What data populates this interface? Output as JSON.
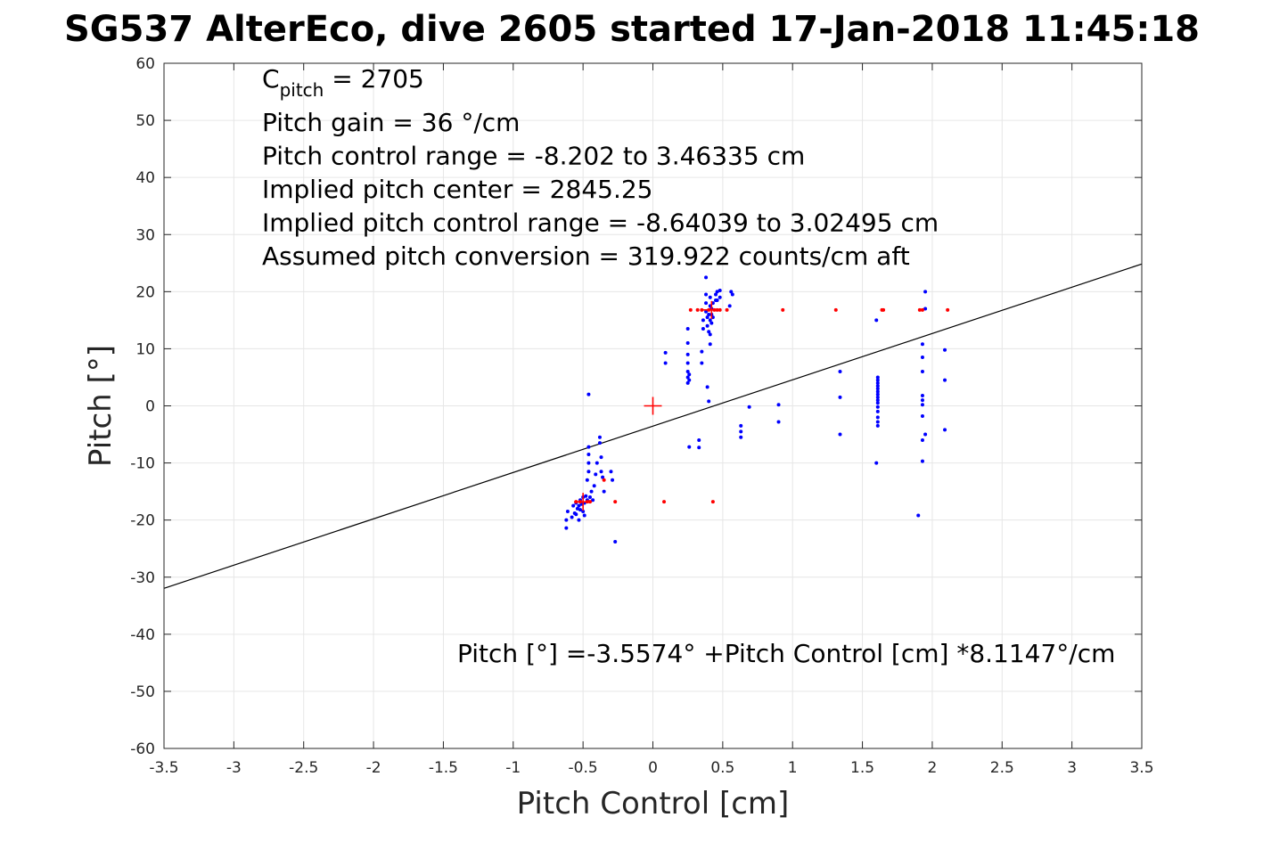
{
  "chart_data": {
    "type": "scatter",
    "title": "SG537 AlterEco, dive 2605 started 17-Jan-2018 11:45:18",
    "xlabel": "Pitch Control [cm]",
    "ylabel": "Pitch [°]",
    "xlim": [
      -3.5,
      3.5
    ],
    "ylim": [
      -60,
      60
    ],
    "xticks": [
      -3.5,
      -3,
      -2.5,
      -2,
      -1.5,
      -1,
      -0.5,
      0,
      0.5,
      1,
      1.5,
      2,
      2.5,
      3,
      3.5
    ],
    "xtick_labels": [
      "-3.5",
      "-3",
      "-2.5",
      "-2",
      "-1.5",
      "-1",
      "-0.5",
      "0",
      "0.5",
      "1",
      "1.5",
      "2",
      "2.5",
      "3",
      "3.5"
    ],
    "yticks": [
      -60,
      -50,
      -40,
      -30,
      -20,
      -10,
      0,
      10,
      20,
      30,
      40,
      50,
      60
    ],
    "ytick_labels": [
      "-60",
      "-50",
      "-40",
      "-30",
      "-20",
      "-10",
      "0",
      "10",
      "20",
      "30",
      "40",
      "50",
      "60"
    ],
    "grid": true,
    "colors": {
      "blue_points": "#0000ff",
      "red_points": "#ff0000",
      "fit_line": "#000000",
      "grid": "#e6e6e6"
    },
    "annotations": {
      "c_pitch_symbol": "C",
      "c_pitch_subscript": "pitch",
      "c_pitch_value": " = 2705",
      "lines": [
        "Pitch gain = 36 °/cm",
        "Pitch control range = -8.202 to 3.46335 cm",
        "Implied pitch center = 2845.25",
        "Implied pitch control range = -8.64039 to 3.02495 cm",
        "Assumed pitch conversion = 319.922 counts/cm aft"
      ],
      "fit_equation": "Pitch [°] =-3.5574° +Pitch Control [cm] *8.1147°/cm"
    },
    "fit_line": {
      "intercept": -3.5574,
      "slope": 8.1147
    },
    "center_marker": {
      "x": 0,
      "y": 0
    },
    "secondary_markers": [
      {
        "x": 0.42,
        "y": 16.8
      },
      {
        "x": -0.5,
        "y": -16.8
      }
    ],
    "series": [
      {
        "color": "blue",
        "points": [
          [
            -0.62,
            -21.4
          ],
          [
            -0.62,
            -20.0
          ],
          [
            -0.61,
            -18.5
          ],
          [
            -0.58,
            -19.5
          ],
          [
            -0.57,
            -17.5
          ],
          [
            -0.56,
            -18.8
          ],
          [
            -0.55,
            -17.0
          ],
          [
            -0.55,
            -19.0
          ],
          [
            -0.54,
            -18.0
          ],
          [
            -0.53,
            -17.5
          ],
          [
            -0.53,
            -20.0
          ],
          [
            -0.52,
            -16.5
          ],
          [
            -0.52,
            -18.2
          ],
          [
            -0.51,
            -17.2
          ],
          [
            -0.5,
            -16.0
          ],
          [
            -0.5,
            -18.5
          ],
          [
            -0.49,
            -17.0
          ],
          [
            -0.49,
            -19.2
          ],
          [
            -0.48,
            -15.8
          ],
          [
            -0.47,
            -16.5
          ],
          [
            -0.47,
            -13.0
          ],
          [
            -0.46,
            -11.5
          ],
          [
            -0.46,
            -10.0
          ],
          [
            -0.46,
            -8.5
          ],
          [
            -0.46,
            -7.2
          ],
          [
            -0.46,
            2.0
          ],
          [
            -0.45,
            -16.0
          ],
          [
            -0.44,
            -15.0
          ],
          [
            -0.43,
            -16.5
          ],
          [
            -0.42,
            -14.0
          ],
          [
            -0.41,
            -12.0
          ],
          [
            -0.4,
            -10.0
          ],
          [
            -0.38,
            -6.5
          ],
          [
            -0.38,
            -5.5
          ],
          [
            -0.37,
            -9.0
          ],
          [
            -0.37,
            -11.5
          ],
          [
            -0.36,
            -12.5
          ],
          [
            -0.35,
            -15.0
          ],
          [
            -0.3,
            -11.5
          ],
          [
            -0.29,
            -13.0
          ],
          [
            -0.27,
            -23.8
          ],
          [
            0.09,
            9.3
          ],
          [
            0.09,
            7.5
          ],
          [
            0.25,
            13.5
          ],
          [
            0.25,
            11.0
          ],
          [
            0.25,
            9.0
          ],
          [
            0.25,
            7.5
          ],
          [
            0.25,
            6.0
          ],
          [
            0.25,
            5.0
          ],
          [
            0.25,
            4.0
          ],
          [
            0.26,
            4.5
          ],
          [
            0.26,
            5.5
          ],
          [
            0.26,
            -7.2
          ],
          [
            0.33,
            -6.0
          ],
          [
            0.33,
            -7.3
          ],
          [
            0.35,
            9.5
          ],
          [
            0.35,
            7.5
          ],
          [
            0.36,
            13.5
          ],
          [
            0.36,
            15.0
          ],
          [
            0.38,
            16.5
          ],
          [
            0.38,
            18.0
          ],
          [
            0.38,
            19.5
          ],
          [
            0.38,
            22.5
          ],
          [
            0.39,
            15.5
          ],
          [
            0.39,
            14.0
          ],
          [
            0.39,
            3.3
          ],
          [
            0.4,
            0.8
          ],
          [
            0.4,
            13.0
          ],
          [
            0.4,
            16.0
          ],
          [
            0.41,
            17.5
          ],
          [
            0.41,
            19.0
          ],
          [
            0.41,
            15.0
          ],
          [
            0.41,
            12.5
          ],
          [
            0.41,
            10.8
          ],
          [
            0.42,
            14.5
          ],
          [
            0.42,
            16.0
          ],
          [
            0.42,
            17.0
          ],
          [
            0.43,
            15.5
          ],
          [
            0.43,
            18.0
          ],
          [
            0.45,
            19.5
          ],
          [
            0.45,
            18.5
          ],
          [
            0.46,
            18.5
          ],
          [
            0.46,
            20.0
          ],
          [
            0.48,
            20.2
          ],
          [
            0.48,
            19.0
          ],
          [
            0.55,
            17.5
          ],
          [
            0.56,
            20.0
          ],
          [
            0.57,
            19.5
          ],
          [
            0.63,
            -3.5
          ],
          [
            0.63,
            -4.5
          ],
          [
            0.63,
            -5.5
          ],
          [
            0.69,
            -0.2
          ],
          [
            0.9,
            0.2
          ],
          [
            0.9,
            -2.8
          ],
          [
            1.34,
            6.0
          ],
          [
            1.34,
            1.5
          ],
          [
            1.34,
            -5.0
          ],
          [
            1.6,
            15.0
          ],
          [
            1.6,
            -10.0
          ],
          [
            1.61,
            5.0
          ],
          [
            1.61,
            4.5
          ],
          [
            1.61,
            4.0
          ],
          [
            1.61,
            3.5
          ],
          [
            1.61,
            3.0
          ],
          [
            1.61,
            2.5
          ],
          [
            1.61,
            2.0
          ],
          [
            1.61,
            1.5
          ],
          [
            1.61,
            1.0
          ],
          [
            1.61,
            0.5
          ],
          [
            1.61,
            -0.2
          ],
          [
            1.61,
            -1.0
          ],
          [
            1.61,
            -2.0
          ],
          [
            1.61,
            -2.8
          ],
          [
            1.61,
            -3.5
          ],
          [
            1.9,
            -19.2
          ],
          [
            1.93,
            10.8
          ],
          [
            1.93,
            8.5
          ],
          [
            1.93,
            6.0
          ],
          [
            1.93,
            1.8
          ],
          [
            1.93,
            1.0
          ],
          [
            1.93,
            0.2
          ],
          [
            1.93,
            -1.8
          ],
          [
            1.93,
            -6.0
          ],
          [
            1.93,
            -9.7
          ],
          [
            1.95,
            20.0
          ],
          [
            1.95,
            17.0
          ],
          [
            1.95,
            -5.0
          ],
          [
            2.09,
            9.8
          ],
          [
            2.09,
            4.5
          ],
          [
            2.09,
            -4.2
          ]
        ]
      },
      {
        "color": "red",
        "points": [
          [
            -0.55,
            -16.8
          ],
          [
            -0.52,
            -16.8
          ],
          [
            -0.47,
            -16.8
          ],
          [
            -0.45,
            -16.8
          ],
          [
            -0.35,
            -13.0
          ],
          [
            -0.27,
            -16.8
          ],
          [
            0.08,
            -16.8
          ],
          [
            0.43,
            -16.8
          ],
          [
            0.27,
            16.8
          ],
          [
            0.32,
            16.8
          ],
          [
            0.35,
            16.8
          ],
          [
            0.4,
            16.8
          ],
          [
            0.44,
            16.8
          ],
          [
            0.46,
            16.8
          ],
          [
            0.48,
            16.8
          ],
          [
            0.53,
            16.8
          ],
          [
            0.93,
            16.8
          ],
          [
            1.31,
            16.8
          ],
          [
            1.64,
            16.8
          ],
          [
            1.65,
            16.8
          ],
          [
            1.91,
            16.8
          ],
          [
            1.93,
            16.8
          ],
          [
            2.11,
            16.8
          ]
        ]
      }
    ]
  }
}
